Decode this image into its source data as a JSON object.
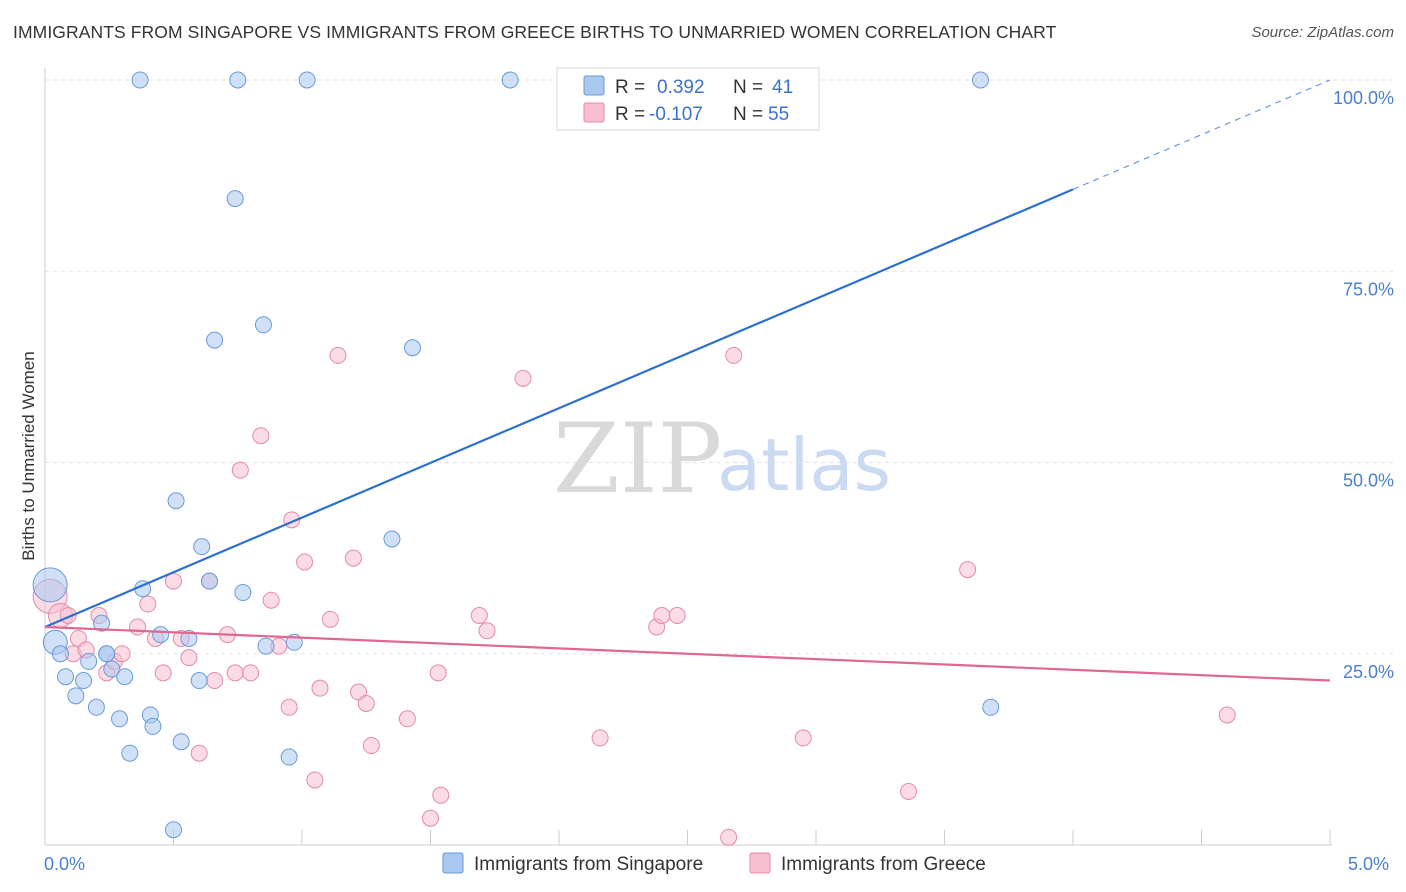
{
  "header": {
    "title": "IMMIGRANTS FROM SINGAPORE VS IMMIGRANTS FROM GREECE BIRTHS TO UNMARRIED WOMEN CORRELATION CHART",
    "source": "Source: ZipAtlas.com"
  },
  "watermark": {
    "zip": "ZIP",
    "atlas": "atlas"
  },
  "colors": {
    "singapore_fill": "#a9c8f0",
    "singapore_stroke": "#6a9ad8",
    "singapore_line": "#2b6fd0",
    "greece_fill": "#f7bfd0",
    "greece_stroke": "#e48aa8",
    "greece_line": "#e0678f"
  },
  "legend": {
    "rows": [
      {
        "r_label": "R =",
        "r_value": "0.392",
        "n_label": "N =",
        "n_value": "41"
      },
      {
        "r_label": "R =",
        "r_value": "-0.107",
        "n_label": "N =",
        "n_value": "55"
      }
    ]
  },
  "bottom_legend": {
    "singapore": "Immigrants from Singapore",
    "greece": "Immigrants from Greece"
  },
  "chart_data": {
    "type": "scatter",
    "title": "IMMIGRANTS FROM SINGAPORE VS IMMIGRANTS FROM GREECE BIRTHS TO UNMARRIED WOMEN CORRELATION CHART",
    "xlabel": "",
    "ylabel": "Births to Unmarried Women",
    "xlim": [
      0,
      5
    ],
    "ylim": [
      0,
      100
    ],
    "x_tick_labels": [
      "0.0%",
      "5.0%"
    ],
    "y_tick_labels": [
      "100.0%",
      "75.0%",
      "50.0%",
      "25.0%"
    ],
    "y_ticks": [
      100,
      75,
      50,
      25
    ],
    "grid": true,
    "series": [
      {
        "name": "Immigrants from Singapore",
        "R": 0.392,
        "N": 41,
        "trend": {
          "x0": 0,
          "y0": 28.5,
          "x1": 5,
          "y1": 100,
          "solid_until_x": 4.0
        },
        "points": [
          [
            0.02,
            34,
            3
          ],
          [
            0.04,
            26.5,
            2
          ],
          [
            0.06,
            25,
            1
          ],
          [
            0.08,
            22,
            1
          ],
          [
            0.12,
            19.5,
            1
          ],
          [
            0.15,
            21.5,
            1
          ],
          [
            0.17,
            24,
            1
          ],
          [
            0.2,
            18,
            1
          ],
          [
            0.22,
            29,
            1
          ],
          [
            0.24,
            25,
            1
          ],
          [
            0.26,
            23,
            1
          ],
          [
            0.29,
            16.5,
            1
          ],
          [
            0.31,
            22,
            1
          ],
          [
            0.33,
            12,
            1
          ],
          [
            0.38,
            33.5,
            1
          ],
          [
            0.41,
            17,
            1
          ],
          [
            0.42,
            15.5,
            1
          ],
          [
            0.45,
            27.5,
            1
          ],
          [
            0.5,
            2,
            1
          ],
          [
            0.51,
            45,
            1
          ],
          [
            0.53,
            13.5,
            1
          ],
          [
            0.56,
            27,
            1
          ],
          [
            0.6,
            21.5,
            1
          ],
          [
            0.61,
            39,
            1
          ],
          [
            0.64,
            34.5,
            1
          ],
          [
            0.66,
            66,
            1
          ],
          [
            0.74,
            84.5,
            1
          ],
          [
            0.77,
            33,
            1
          ],
          [
            0.85,
            68,
            1
          ],
          [
            0.86,
            26,
            1
          ],
          [
            0.95,
            11.5,
            1
          ],
          [
            0.97,
            26.5,
            1
          ],
          [
            0.37,
            100,
            1
          ],
          [
            0.75,
            100,
            1
          ],
          [
            1.02,
            100,
            1
          ],
          [
            1.35,
            40,
            1
          ],
          [
            1.43,
            65,
            1
          ],
          [
            1.81,
            100,
            1
          ],
          [
            3.64,
            100,
            1
          ],
          [
            3.68,
            18,
            1
          ],
          [
            0.24,
            25,
            1
          ]
        ]
      },
      {
        "name": "Immigrants from Greece",
        "R": -0.107,
        "N": 55,
        "trend": {
          "x0": 0,
          "y0": 28.5,
          "x1": 5,
          "y1": 21.5,
          "solid_until_x": 5
        },
        "points": [
          [
            0.02,
            32.5,
            3
          ],
          [
            0.06,
            30,
            2
          ],
          [
            0.09,
            30,
            1
          ],
          [
            0.11,
            25,
            1
          ],
          [
            0.13,
            27,
            1
          ],
          [
            0.16,
            25.5,
            1
          ],
          [
            0.21,
            30,
            1
          ],
          [
            0.24,
            22.5,
            1
          ],
          [
            0.27,
            24,
            1
          ],
          [
            0.3,
            25,
            1
          ],
          [
            0.36,
            28.5,
            1
          ],
          [
            0.4,
            31.5,
            1
          ],
          [
            0.43,
            27,
            1
          ],
          [
            0.46,
            22.5,
            1
          ],
          [
            0.5,
            34.5,
            1
          ],
          [
            0.53,
            27,
            1
          ],
          [
            0.56,
            24.5,
            1
          ],
          [
            0.6,
            12,
            1
          ],
          [
            0.64,
            34.5,
            1
          ],
          [
            0.66,
            21.5,
            1
          ],
          [
            0.71,
            27.5,
            1
          ],
          [
            0.74,
            22.5,
            1
          ],
          [
            0.76,
            49,
            1
          ],
          [
            0.8,
            22.5,
            1
          ],
          [
            0.84,
            53.5,
            1
          ],
          [
            0.88,
            32,
            1
          ],
          [
            0.91,
            26,
            1
          ],
          [
            0.95,
            18,
            1
          ],
          [
            0.96,
            42.5,
            1
          ],
          [
            1.01,
            37,
            1
          ],
          [
            1.05,
            8.5,
            1
          ],
          [
            1.07,
            20.5,
            1
          ],
          [
            1.11,
            29.5,
            1
          ],
          [
            1.14,
            64,
            1
          ],
          [
            1.2,
            37.5,
            1
          ],
          [
            1.22,
            20,
            1
          ],
          [
            1.25,
            18.5,
            1
          ],
          [
            1.27,
            13,
            1
          ],
          [
            1.41,
            16.5,
            1
          ],
          [
            1.5,
            3.5,
            1
          ],
          [
            1.53,
            22.5,
            1
          ],
          [
            1.54,
            6.5,
            1
          ],
          [
            1.69,
            30,
            1
          ],
          [
            1.72,
            28,
            1
          ],
          [
            1.86,
            61,
            1
          ],
          [
            2.16,
            14,
            1
          ],
          [
            2.38,
            28.5,
            1
          ],
          [
            2.4,
            30,
            1
          ],
          [
            2.46,
            30,
            1
          ],
          [
            2.66,
            1,
            1
          ],
          [
            2.68,
            64,
            1
          ],
          [
            2.95,
            14,
            1
          ],
          [
            3.36,
            7,
            1
          ],
          [
            3.59,
            36,
            1
          ],
          [
            4.6,
            17,
            1
          ]
        ]
      }
    ]
  }
}
